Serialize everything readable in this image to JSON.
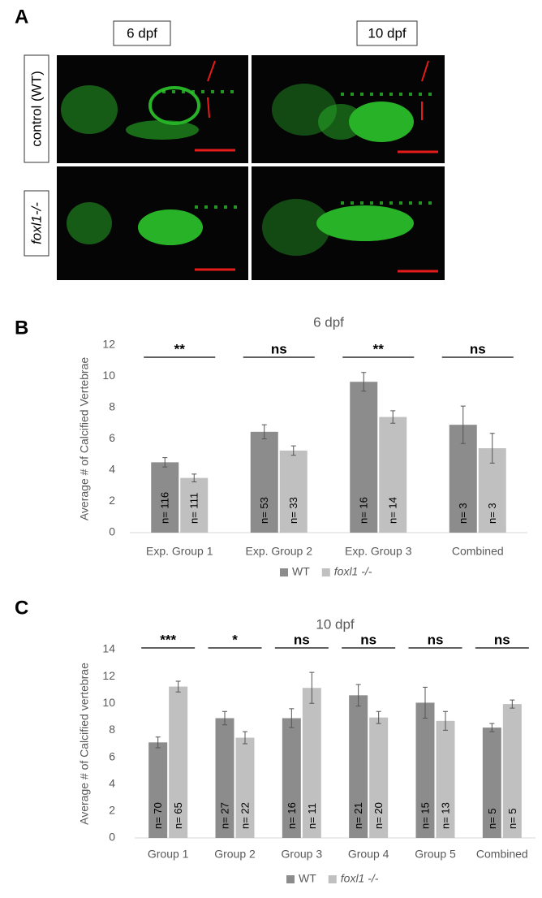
{
  "panel_a": {
    "letter": "A",
    "columns": [
      "6 dpf",
      "10 dpf"
    ],
    "rows": [
      "control (WT)",
      "foxl1-/-"
    ]
  },
  "chart_data": [
    {
      "type": "bar",
      "letter": "B",
      "title": "6 dpf",
      "ylabel": "Average # of Calcified Vertebrae",
      "categories": [
        "Exp. Group 1",
        "Exp. Group 2",
        "Exp. Group 3",
        "Combined"
      ],
      "series": [
        {
          "name": "WT",
          "color": "#8c8c8c",
          "values": [
            4.5,
            6.45,
            9.65,
            6.9
          ],
          "errors": [
            0.3,
            0.45,
            0.6,
            1.2
          ],
          "n_labels": [
            "n= 116",
            "n= 53",
            "n= 16",
            "n= 3"
          ]
        },
        {
          "name": "foxl1 -/-",
          "color": "#c0c0c0",
          "values": [
            3.5,
            5.25,
            7.4,
            5.4
          ],
          "errors": [
            0.25,
            0.3,
            0.4,
            0.95
          ],
          "n_labels": [
            "n= 111",
            "n= 33",
            "n= 14",
            "n= 3"
          ]
        }
      ],
      "annotations": [
        "**",
        "ns",
        "**",
        "ns"
      ],
      "ylim": [
        0,
        12
      ],
      "yticks": [
        0,
        2,
        4,
        6,
        8,
        10,
        12
      ],
      "grid": false,
      "legend": "bottom"
    },
    {
      "type": "bar",
      "letter": "C",
      "title": "10 dpf",
      "ylabel": "Average # of Calcified vertebrae",
      "categories": [
        "Group 1",
        "Group 2",
        "Group 3",
        "Group 4",
        "Group 5",
        "Combined"
      ],
      "series": [
        {
          "name": "WT",
          "color": "#8c8c8c",
          "values": [
            7.1,
            8.9,
            8.9,
            10.6,
            10.05,
            8.2
          ],
          "errors": [
            0.4,
            0.5,
            0.7,
            0.8,
            1.15,
            0.3
          ],
          "n_labels": [
            "n= 70",
            "n= 27",
            "n= 16",
            "n= 21",
            "n= 15",
            "n= 5"
          ]
        },
        {
          "name": "foxl1 -/-",
          "color": "#c0c0c0",
          "values": [
            11.25,
            7.45,
            11.15,
            8.95,
            8.7,
            9.95
          ],
          "errors": [
            0.4,
            0.45,
            1.15,
            0.45,
            0.7,
            0.3
          ],
          "n_labels": [
            "n= 65",
            "n= 22",
            "n= 11",
            "n= 20",
            "n= 13",
            "n= 5"
          ]
        }
      ],
      "annotations": [
        "***",
        "*",
        "ns",
        "ns",
        "ns",
        "ns"
      ],
      "ylim": [
        0,
        14
      ],
      "yticks": [
        0,
        2,
        4,
        6,
        8,
        10,
        12,
        14
      ],
      "grid": false,
      "legend": "bottom"
    }
  ]
}
